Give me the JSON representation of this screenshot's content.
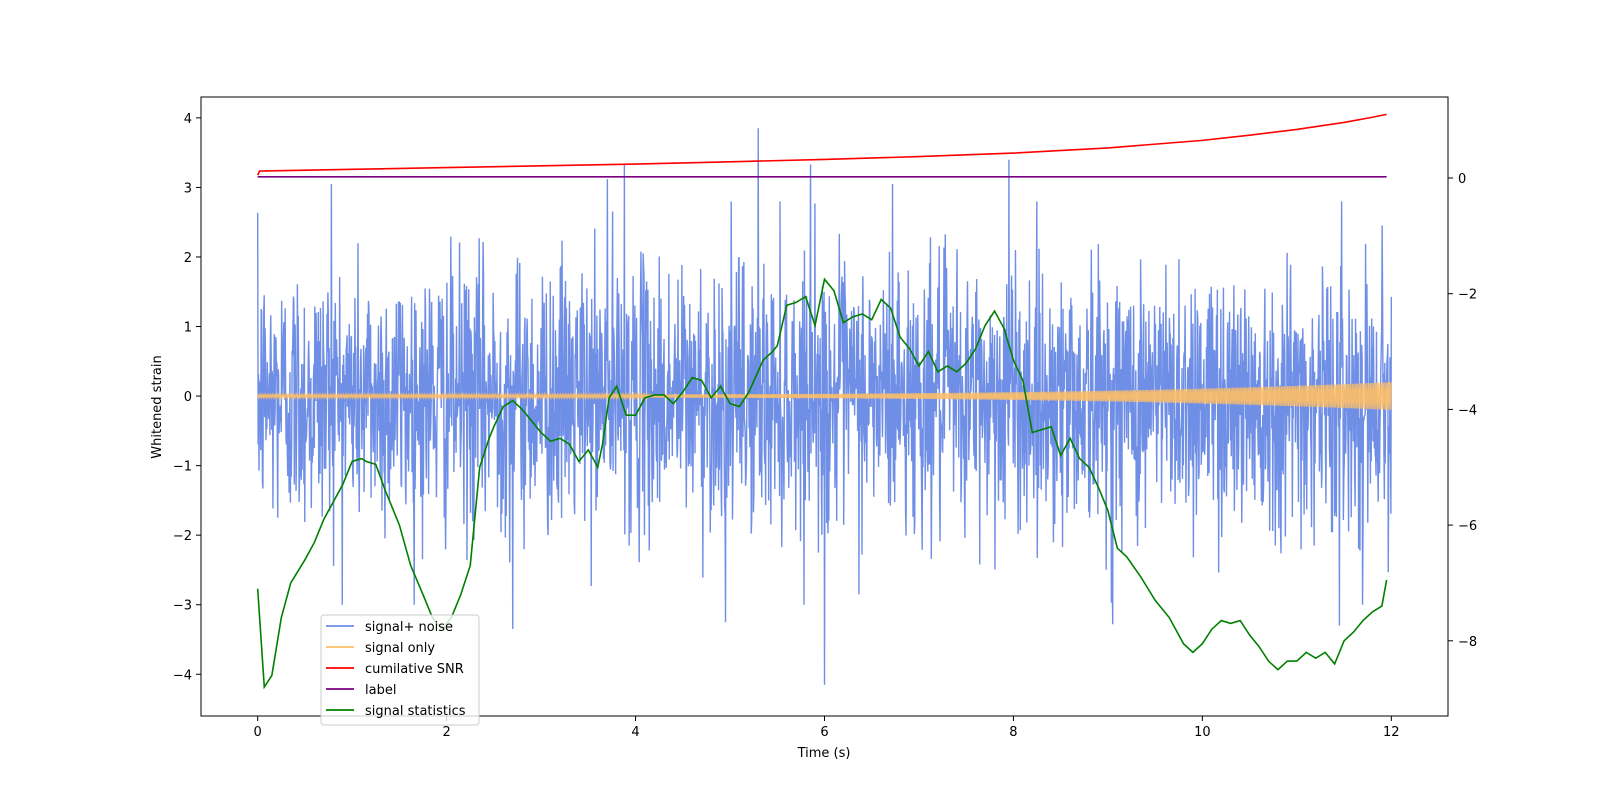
{
  "chart_data": {
    "type": "line",
    "title": "",
    "xlabel": "Time (s)",
    "ylabel": "Whitened strain",
    "xlim": [
      -0.6,
      12.6
    ],
    "ylim": [
      -4.6,
      4.3
    ],
    "y2lim": [
      -9.3,
      1.4
    ],
    "x_ticks": [
      0,
      2,
      4,
      6,
      8,
      10,
      12
    ],
    "y_ticks": [
      -4,
      -3,
      -2,
      -1,
      0,
      1,
      2,
      3,
      4
    ],
    "y2_ticks": [
      -8,
      -6,
      -4,
      -2,
      0
    ],
    "grid": false,
    "legend_position": "lower-left",
    "series": [
      {
        "name": "signal+ noise",
        "color": "#6f8ee6",
        "axis": "left",
        "x_range": [
          0,
          12
        ],
        "noise_sigma": 0.95,
        "spikes": [
          {
            "x": 5.3,
            "y": 3.85
          },
          {
            "x": 3.88,
            "y": 3.33
          },
          {
            "x": 5.85,
            "y": 3.33
          },
          {
            "x": 7.95,
            "y": 3.4
          },
          {
            "x": 0.78,
            "y": 3.05
          },
          {
            "x": 3.7,
            "y": 3.12
          },
          {
            "x": 6.72,
            "y": 3.05
          },
          {
            "x": 6.0,
            "y": -4.15
          },
          {
            "x": 2.7,
            "y": -3.35
          },
          {
            "x": 4.95,
            "y": -3.25
          },
          {
            "x": 11.45,
            "y": -3.3
          },
          {
            "x": 9.05,
            "y": -3.28
          }
        ]
      },
      {
        "name": "signal only",
        "color": "#ffbf66",
        "axis": "left",
        "x_range": [
          0,
          12
        ],
        "amplitude_start": 0.02,
        "amplitude_end": 0.2
      },
      {
        "name": "cumilative SNR",
        "color": "#ff0000",
        "axis": "right",
        "x": [
          0,
          0.02,
          1,
          2,
          3,
          4,
          5,
          6,
          7,
          8,
          9,
          10,
          10.5,
          11,
          11.5,
          11.8,
          11.95
        ],
        "y": [
          0.05,
          0.12,
          0.15,
          0.18,
          0.21,
          0.24,
          0.28,
          0.32,
          0.37,
          0.43,
          0.52,
          0.65,
          0.74,
          0.84,
          0.96,
          1.05,
          1.1
        ]
      },
      {
        "name": "label",
        "color": "#7b0080",
        "axis": "right",
        "x": [
          0,
          11.95
        ],
        "y": [
          0.02,
          0.02
        ]
      },
      {
        "name": "signal statistics",
        "color": "#008000",
        "axis": "right",
        "x": [
          0,
          0.07,
          0.15,
          0.25,
          0.35,
          0.5,
          0.6,
          0.7,
          0.8,
          0.9,
          1.0,
          1.1,
          1.15,
          1.25,
          1.35,
          1.5,
          1.62,
          1.75,
          1.85,
          1.95,
          2.05,
          2.15,
          2.25,
          2.35,
          2.45,
          2.5,
          2.6,
          2.7,
          2.8,
          2.9,
          3.0,
          3.1,
          3.2,
          3.3,
          3.4,
          3.5,
          3.6,
          3.65,
          3.72,
          3.8,
          3.9,
          4.0,
          4.1,
          4.2,
          4.3,
          4.4,
          4.5,
          4.6,
          4.7,
          4.8,
          4.9,
          5.0,
          5.1,
          5.2,
          5.35,
          5.45,
          5.5,
          5.6,
          5.7,
          5.8,
          5.9,
          6.0,
          6.1,
          6.2,
          6.3,
          6.4,
          6.5,
          6.6,
          6.7,
          6.8,
          6.9,
          7.0,
          7.1,
          7.2,
          7.3,
          7.4,
          7.5,
          7.6,
          7.7,
          7.8,
          7.9,
          8.0,
          8.1,
          8.2,
          8.3,
          8.4,
          8.5,
          8.6,
          8.7,
          8.8,
          8.9,
          9.0,
          9.1,
          9.2,
          9.35,
          9.5,
          9.65,
          9.8,
          9.9,
          10.0,
          10.1,
          10.2,
          10.3,
          10.4,
          10.5,
          10.6,
          10.7,
          10.8,
          10.9,
          11.0,
          11.1,
          11.2,
          11.3,
          11.4,
          11.5,
          11.6,
          11.7,
          11.8,
          11.9,
          11.95
        ],
        "y": [
          -7.1,
          -8.8,
          -8.6,
          -7.6,
          -7.0,
          -6.6,
          -6.3,
          -5.9,
          -5.6,
          -5.3,
          -4.9,
          -4.85,
          -4.9,
          -4.95,
          -5.4,
          -6.0,
          -6.7,
          -7.2,
          -7.6,
          -7.8,
          -7.6,
          -7.2,
          -6.7,
          -5.0,
          -4.5,
          -4.3,
          -3.95,
          -3.85,
          -4.0,
          -4.2,
          -4.4,
          -4.55,
          -4.5,
          -4.6,
          -4.9,
          -4.7,
          -5.0,
          -4.6,
          -3.8,
          -3.6,
          -4.1,
          -4.1,
          -3.8,
          -3.75,
          -3.75,
          -3.9,
          -3.7,
          -3.45,
          -3.5,
          -3.8,
          -3.6,
          -3.9,
          -3.95,
          -3.7,
          -3.15,
          -3.0,
          -2.9,
          -2.2,
          -2.15,
          -2.05,
          -2.55,
          -1.75,
          -1.95,
          -2.5,
          -2.4,
          -2.35,
          -2.45,
          -2.1,
          -2.25,
          -2.75,
          -2.95,
          -3.25,
          -3.0,
          -3.35,
          -3.25,
          -3.35,
          -3.2,
          -2.95,
          -2.55,
          -2.3,
          -2.6,
          -3.15,
          -3.5,
          -4.4,
          -4.35,
          -4.3,
          -4.8,
          -4.5,
          -4.85,
          -5.0,
          -5.35,
          -5.75,
          -6.4,
          -6.55,
          -6.9,
          -7.3,
          -7.6,
          -8.05,
          -8.2,
          -8.05,
          -7.8,
          -7.65,
          -7.7,
          -7.65,
          -7.9,
          -8.1,
          -8.35,
          -8.5,
          -8.35,
          -8.35,
          -8.2,
          -8.3,
          -8.2,
          -8.4,
          -8.0,
          -7.85,
          -7.65,
          -7.5,
          -7.4,
          -6.95
        ]
      }
    ]
  }
}
